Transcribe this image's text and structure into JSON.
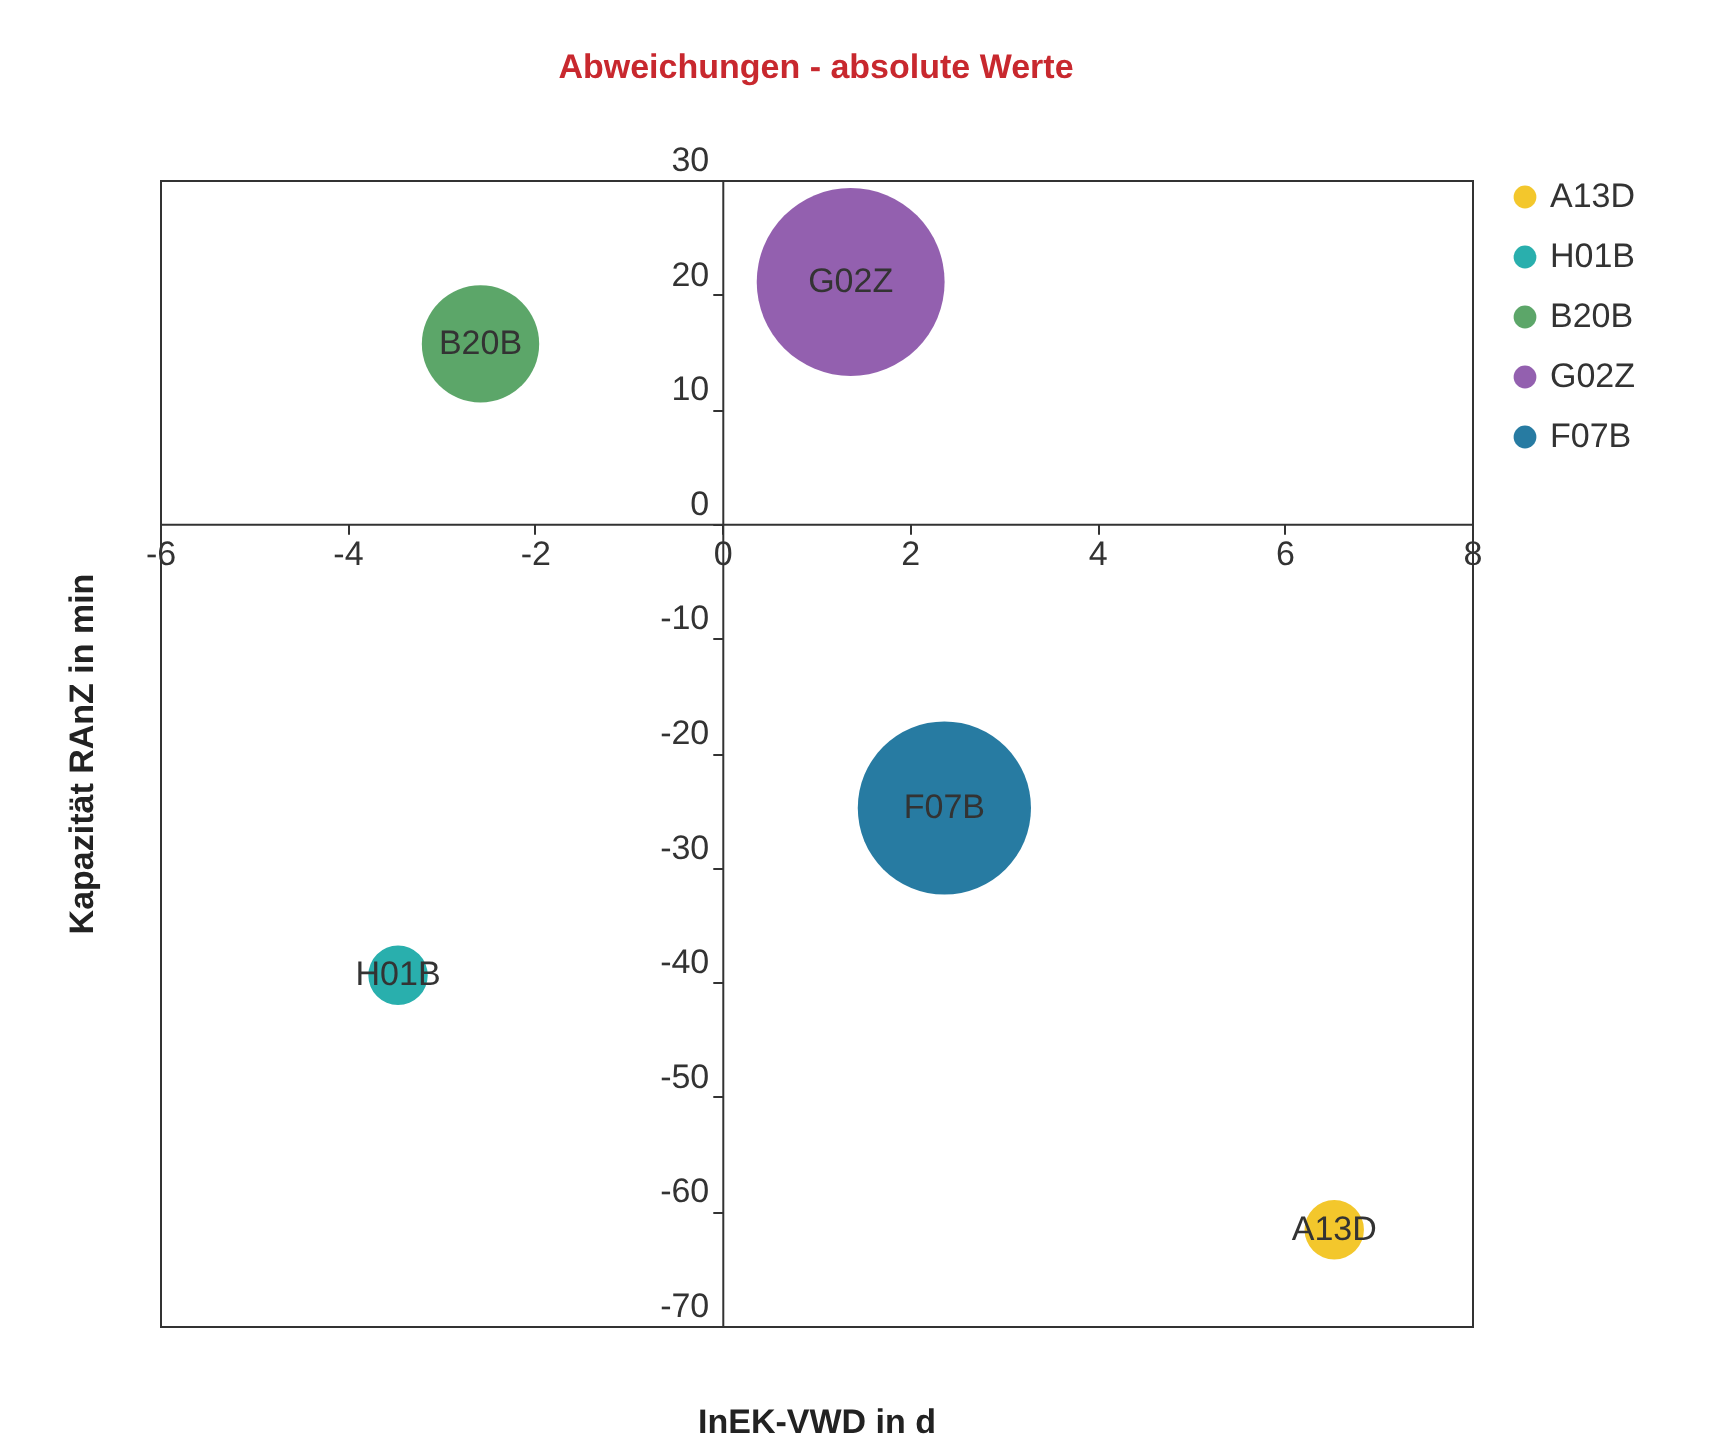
{
  "chart_data": {
    "type": "bubble",
    "title": "Abweichungen - absolute Werte",
    "xlabel": "InEK-VWD in d",
    "ylabel": "Kapazität RAnZ in min",
    "xlim": [
      -6,
      8
    ],
    "xticks": [
      -6,
      -4,
      -2,
      0,
      2,
      4,
      6,
      8
    ],
    "ylim": [
      -70,
      30
    ],
    "yticks": [
      -70,
      -60,
      -50,
      -40,
      -30,
      -20,
      -10,
      0,
      10,
      20,
      30
    ],
    "grid": false,
    "legend": "top right",
    "series": [
      {
        "name": "A13D",
        "color": "#f2c21a",
        "x": [
          6.53
        ],
        "values": [
          -61.6
        ],
        "sizes": [
          0.1
        ]
      },
      {
        "name": "H01B",
        "color": "#17a8a6",
        "x": [
          -3.46
        ],
        "values": [
          -39.4
        ],
        "sizes": [
          0.1
        ]
      },
      {
        "name": "B20B",
        "color": "#4e9e5c",
        "x": [
          -2.58
        ],
        "values": [
          15.7
        ],
        "sizes": [
          0.39
        ]
      },
      {
        "name": "G02Z",
        "color": "#8a52a8",
        "x": [
          1.37
        ],
        "values": [
          21.1
        ],
        "sizes": [
          1
        ]
      },
      {
        "name": "F07B",
        "color": "#15709a",
        "x": [
          2.37
        ],
        "values": [
          -24.8
        ],
        "sizes": [
          0.85
        ]
      }
    ]
  }
}
